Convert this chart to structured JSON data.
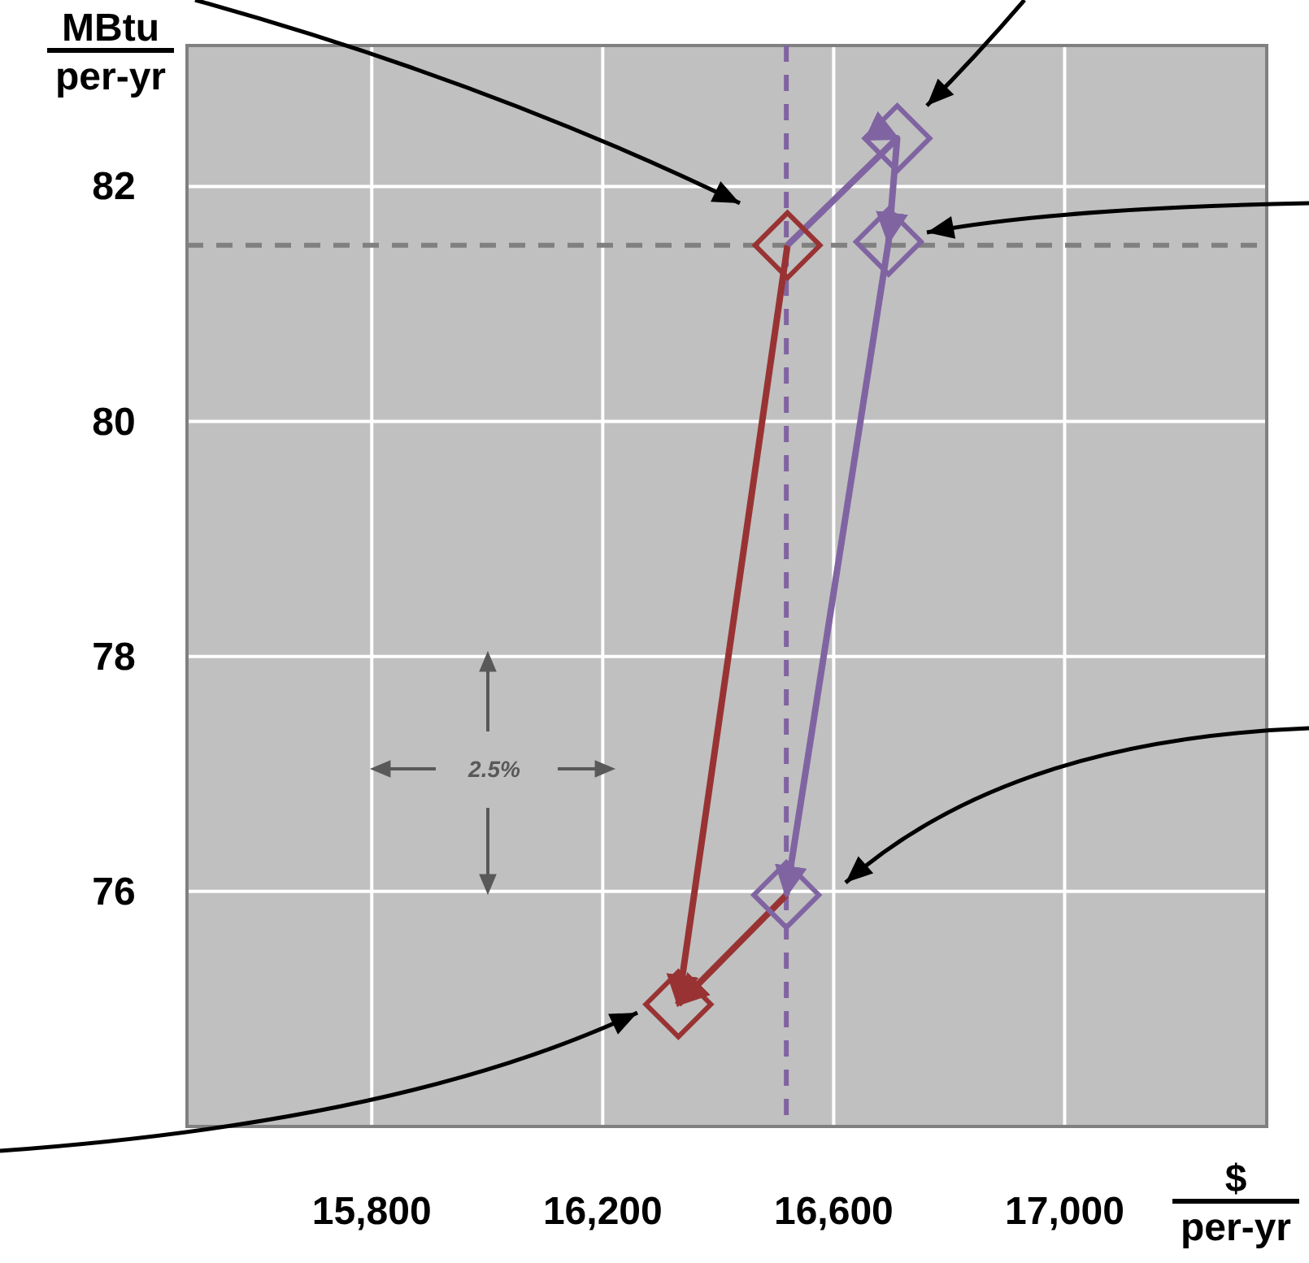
{
  "chart_data": {
    "type": "scatter",
    "xlabel": "$\nper-yr",
    "ylabel": "MBtu\nper-yr",
    "xlim": [
      15480,
      17350
    ],
    "ylim": [
      74.0,
      83.2
    ],
    "xticks": [
      {
        "value": 15800,
        "label": "15,800"
      },
      {
        "value": 16200,
        "label": "16,200"
      },
      {
        "value": 16600,
        "label": "16,600"
      },
      {
        "value": 17000,
        "label": "17,000"
      }
    ],
    "yticks": [
      76,
      78,
      80,
      82
    ],
    "grid": true,
    "series": [
      {
        "type": "line",
        "color": "#993333",
        "x": [
          16520,
          16331
        ],
        "values": [
          81.5,
          75.04
        ],
        "marker": "none"
      },
      {
        "type": "line",
        "color": "#993333",
        "x": [
          16518,
          16331
        ],
        "values": [
          75.97,
          75.04
        ],
        "marker": "none"
      },
      {
        "type": "line",
        "color": "#8064a2",
        "x": [
          16520,
          16710,
          16695,
          16518
        ],
        "values": [
          81.5,
          82.41,
          81.53,
          75.97
        ],
        "marker": "none"
      },
      {
        "color": "#993333",
        "x": [
          16520,
          16331
        ],
        "values": [
          81.5,
          75.04
        ],
        "marker": "diamond"
      },
      {
        "color": "#8064a2",
        "x": [
          16710,
          16695,
          16518
        ],
        "values": [
          82.41,
          81.53,
          75.97
        ],
        "marker": "diamond"
      }
    ],
    "ref_lines": [
      {
        "axis": "y",
        "value": 81.5,
        "color": "#808080",
        "line_style": "dashed"
      },
      {
        "axis": "x",
        "value": 16518,
        "color": "#8064a2",
        "line_style": "dashed"
      }
    ],
    "annotations": [
      "2.5%"
    ]
  }
}
